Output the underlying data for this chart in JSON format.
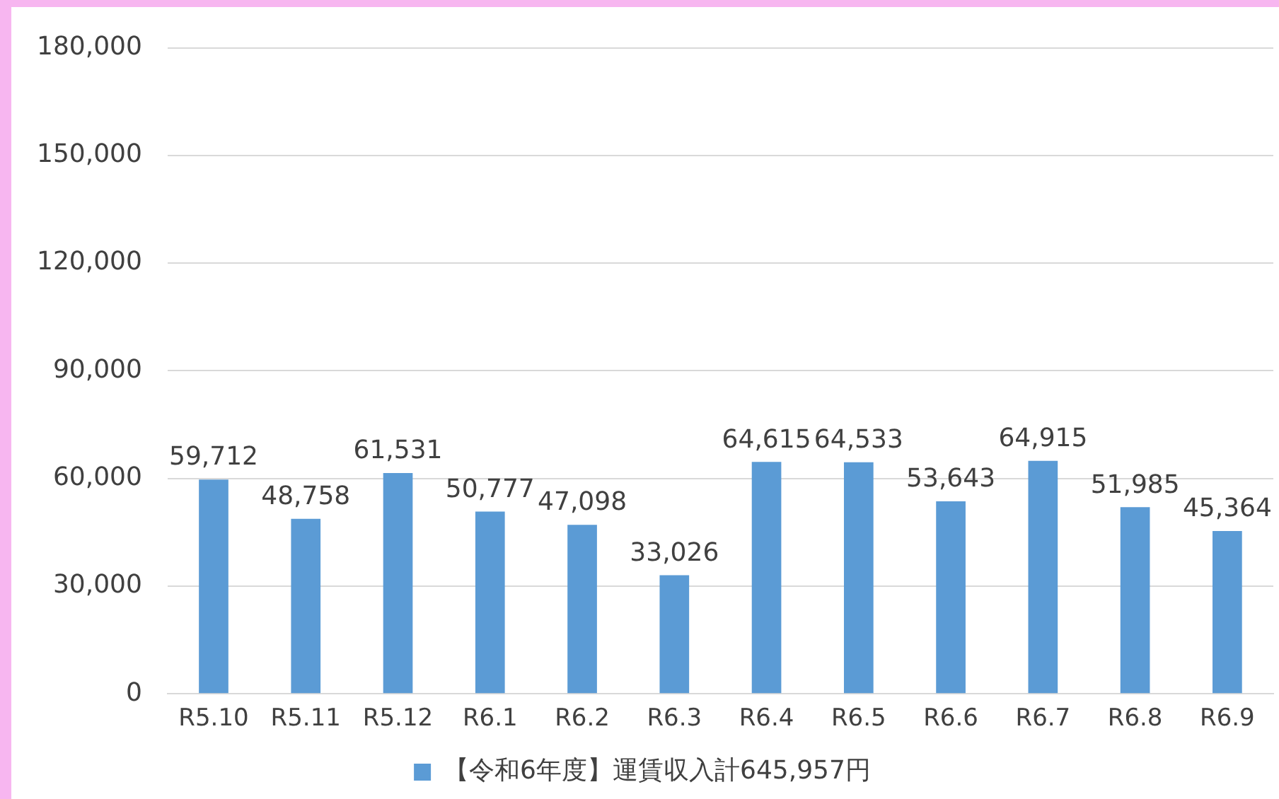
{
  "chart_data": {
    "type": "bar",
    "categories": [
      "R5.10",
      "R5.11",
      "R5.12",
      "R6.1",
      "R6.2",
      "R6.3",
      "R6.4",
      "R6.5",
      "R6.6",
      "R6.7",
      "R6.8",
      "R6.9"
    ],
    "series": [
      {
        "name": "【令和6年度】運賃収入計645,957円",
        "color": "#5b9bd5",
        "values": [
          59712,
          48758,
          61531,
          50777,
          47098,
          33026,
          64615,
          64533,
          53643,
          64915,
          51985,
          45364
        ],
        "value_labels": [
          "59,712",
          "48,758",
          "61,531",
          "50,777",
          "47,098",
          "33,026",
          "64,615",
          "64,533",
          "53,643",
          "64,915",
          "51,985",
          "45,364"
        ]
      }
    ],
    "ylim": [
      0,
      180000
    ],
    "yticks": [
      {
        "value": 0,
        "label": "0"
      },
      {
        "value": 30000,
        "label": "30,000"
      },
      {
        "value": 60000,
        "label": "60,000"
      },
      {
        "value": 90000,
        "label": "90,000"
      },
      {
        "value": 120000,
        "label": "120,000"
      },
      {
        "value": 150000,
        "label": "150,000"
      },
      {
        "value": 180000,
        "label": "180,000"
      }
    ],
    "grid": "y",
    "legend": "bottom"
  }
}
